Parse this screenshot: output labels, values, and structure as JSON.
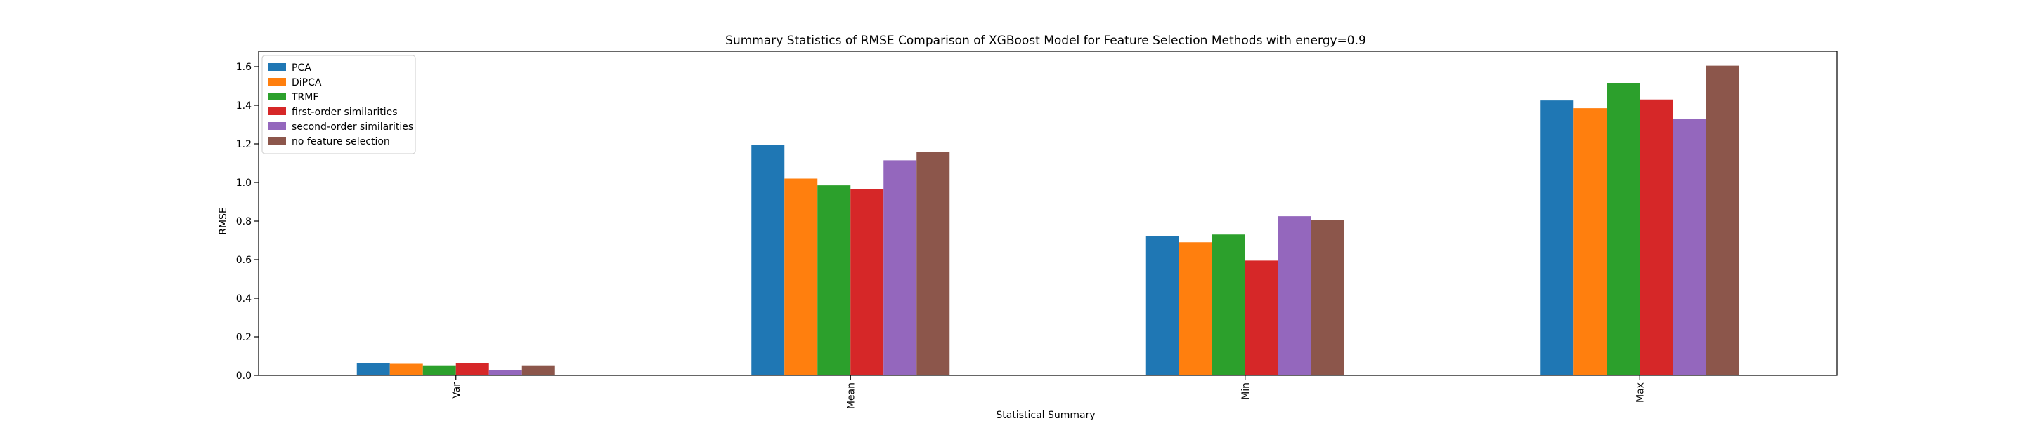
{
  "chart_data": {
    "type": "bar",
    "title": "Summary Statistics of RMSE Comparison of XGBoost Model for Feature Selection Methods with energy=0.9",
    "xlabel": "Statistical Summary",
    "ylabel": "RMSE",
    "categories": [
      "Var",
      "Mean",
      "Min",
      "Max"
    ],
    "ylim": [
      0,
      1.68
    ],
    "yticks": [
      "0.0",
      "0.2",
      "0.4",
      "0.6",
      "0.8",
      "1.0",
      "1.2",
      "1.4",
      "1.6"
    ],
    "grid": false,
    "legend_position": "top-left",
    "series": [
      {
        "name": "PCA",
        "color": "#1f77b4",
        "values": [
          0.065,
          1.195,
          0.72,
          1.425
        ]
      },
      {
        "name": "DiPCA",
        "color": "#ff7f0e",
        "values": [
          0.06,
          1.02,
          0.69,
          1.385
        ]
      },
      {
        "name": "TRMF",
        "color": "#2ca02c",
        "values": [
          0.052,
          0.985,
          0.73,
          1.515
        ]
      },
      {
        "name": "first-order similarities",
        "color": "#d62728",
        "values": [
          0.065,
          0.965,
          0.595,
          1.43
        ]
      },
      {
        "name": "second-order similarities",
        "color": "#9467bd",
        "values": [
          0.027,
          1.115,
          0.825,
          1.33
        ]
      },
      {
        "name": "no feature selection",
        "color": "#8c564b",
        "values": [
          0.052,
          1.16,
          0.805,
          1.605
        ]
      }
    ]
  }
}
